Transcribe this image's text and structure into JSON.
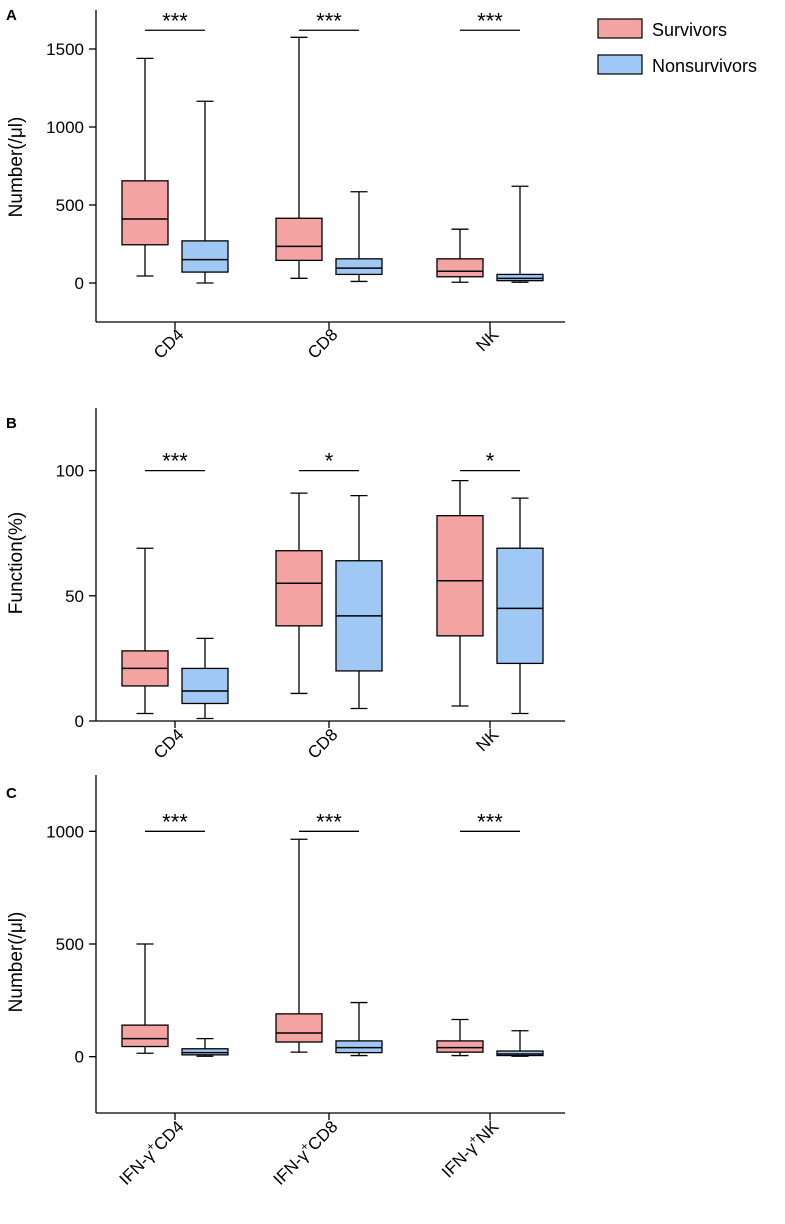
{
  "colors": {
    "survivors": "#f4a3a3",
    "nonsurvivors": "#9fc9f4",
    "stroke": "#000000"
  },
  "legend": {
    "position": "top-right",
    "items": [
      {
        "label": "Survivors",
        "color": "#f4a3a3"
      },
      {
        "label": "Nonsurvivors",
        "color": "#9fc9f4"
      }
    ]
  },
  "chart_data": [
    {
      "panel": "A",
      "type": "box",
      "ylabel": "Number(/μl)",
      "ylim": [
        -250,
        1750
      ],
      "yticks": [
        0,
        500,
        1000,
        1500
      ],
      "categories": [
        "CD4",
        "CD8",
        "NK"
      ],
      "series": [
        {
          "name": "Survivors",
          "boxes": [
            {
              "min": 45,
              "q1": 245,
              "median": 410,
              "q3": 655,
              "max": 1440
            },
            {
              "min": 30,
              "q1": 145,
              "median": 235,
              "q3": 415,
              "max": 1575
            },
            {
              "min": 5,
              "q1": 40,
              "median": 75,
              "q3": 155,
              "max": 345
            }
          ]
        },
        {
          "name": "Nonsurvivors",
          "boxes": [
            {
              "min": 0,
              "q1": 70,
              "median": 150,
              "q3": 270,
              "max": 1165
            },
            {
              "min": 10,
              "q1": 55,
              "median": 95,
              "q3": 155,
              "max": 585
            },
            {
              "min": 5,
              "q1": 15,
              "median": 30,
              "q3": 55,
              "max": 620
            }
          ]
        }
      ],
      "significance": [
        "***",
        "***",
        "***"
      ],
      "sig_level": 1620
    },
    {
      "panel": "B",
      "type": "box",
      "ylabel": "Function(%)",
      "ylim": [
        0,
        125
      ],
      "yticks": [
        0,
        50,
        100
      ],
      "categories": [
        "CD4",
        "CD8",
        "NK"
      ],
      "series": [
        {
          "name": "Survivors",
          "boxes": [
            {
              "min": 3,
              "q1": 14,
              "median": 21,
              "q3": 28,
              "max": 69
            },
            {
              "min": 11,
              "q1": 38,
              "median": 55,
              "q3": 68,
              "max": 91
            },
            {
              "min": 6,
              "q1": 34,
              "median": 56,
              "q3": 82,
              "max": 96
            }
          ]
        },
        {
          "name": "Nonsurvivors",
          "boxes": [
            {
              "min": 1,
              "q1": 7,
              "median": 12,
              "q3": 21,
              "max": 33
            },
            {
              "min": 5,
              "q1": 20,
              "median": 42,
              "q3": 64,
              "max": 90
            },
            {
              "min": 3,
              "q1": 23,
              "median": 45,
              "q3": 69,
              "max": 89
            }
          ]
        }
      ],
      "significance": [
        "***",
        "*",
        "*"
      ],
      "sig_level": 100
    },
    {
      "panel": "C",
      "type": "box",
      "ylabel": "Number(/μl)",
      "ylim": [
        -250,
        1250
      ],
      "yticks": [
        0,
        500,
        1000
      ],
      "categories": [
        "IFN-γ+CD4",
        "IFN-γ+CD8",
        "IFN-γ+NK"
      ],
      "category_labels": [
        {
          "pre": "IFN-γ",
          "sup": "+",
          "post": "CD4"
        },
        {
          "pre": "IFN-γ",
          "sup": "+",
          "post": "CD8"
        },
        {
          "pre": "IFN-γ",
          "sup": "+",
          "post": "NK"
        }
      ],
      "series": [
        {
          "name": "Survivors",
          "boxes": [
            {
              "min": 15,
              "q1": 45,
              "median": 80,
              "q3": 140,
              "max": 500
            },
            {
              "min": 20,
              "q1": 65,
              "median": 105,
              "q3": 190,
              "max": 965
            },
            {
              "min": 5,
              "q1": 20,
              "median": 40,
              "q3": 70,
              "max": 165
            }
          ]
        },
        {
          "name": "Nonsurvivors",
          "boxes": [
            {
              "min": 2,
              "q1": 8,
              "median": 18,
              "q3": 35,
              "max": 80
            },
            {
              "min": 5,
              "q1": 18,
              "median": 40,
              "q3": 70,
              "max": 240
            },
            {
              "min": 2,
              "q1": 5,
              "median": 12,
              "q3": 25,
              "max": 115
            }
          ]
        }
      ],
      "significance": [
        "***",
        "***",
        "***"
      ],
      "sig_level": 1000
    }
  ]
}
